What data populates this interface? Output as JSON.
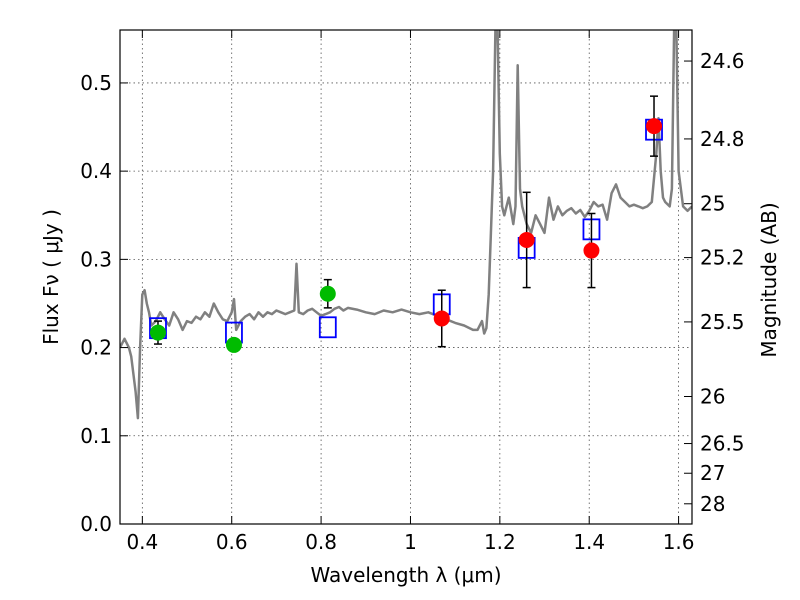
{
  "chart_data": {
    "type": "scatter",
    "xlabel": "Wavelength  λ (μm)",
    "ylabel": "Flux  Fν  ( μJy )",
    "ylabel_right": "Magnitude (AB)",
    "xlim": [
      0.35,
      1.63
    ],
    "ylim": [
      0.0,
      0.56
    ],
    "grid": true,
    "x_ticks": [
      {
        "value": 0.4,
        "label": "0.4"
      },
      {
        "value": 0.6,
        "label": "0.6"
      },
      {
        "value": 0.8,
        "label": "0.8"
      },
      {
        "value": 1.0,
        "label": "1"
      },
      {
        "value": 1.2,
        "label": "1.2"
      },
      {
        "value": 1.4,
        "label": "1.4"
      },
      {
        "value": 1.6,
        "label": "1.6"
      }
    ],
    "y_ticks": [
      {
        "value": 0.0,
        "label": "0.0"
      },
      {
        "value": 0.1,
        "label": "0.1"
      },
      {
        "value": 0.2,
        "label": "0.2"
      },
      {
        "value": 0.3,
        "label": "0.3"
      },
      {
        "value": 0.4,
        "label": "0.4"
      },
      {
        "value": 0.5,
        "label": "0.5"
      }
    ],
    "right_ticks": [
      {
        "label": "24.6",
        "mag": 24.6
      },
      {
        "label": "24.8",
        "mag": 24.8
      },
      {
        "label": "25",
        "mag": 25.0
      },
      {
        "label": "25.2",
        "mag": 25.2
      },
      {
        "label": "25.5",
        "mag": 25.5
      },
      {
        "label": "26",
        "mag": 26.0
      },
      {
        "label": "26.5",
        "mag": 26.5
      },
      {
        "label": "27",
        "mag": 27.0
      },
      {
        "label": "28",
        "mag": 28.0
      }
    ],
    "series": [
      {
        "style": "line",
        "color": "#808080",
        "x": [
          0.35,
          0.36,
          0.37,
          0.375,
          0.38,
          0.385,
          0.39,
          0.395,
          0.4,
          0.405,
          0.41,
          0.415,
          0.42,
          0.43,
          0.44,
          0.45,
          0.46,
          0.47,
          0.48,
          0.49,
          0.5,
          0.51,
          0.52,
          0.53,
          0.54,
          0.55,
          0.56,
          0.57,
          0.58,
          0.59,
          0.6,
          0.605,
          0.61,
          0.62,
          0.63,
          0.64,
          0.65,
          0.66,
          0.67,
          0.68,
          0.69,
          0.7,
          0.71,
          0.72,
          0.73,
          0.74,
          0.745,
          0.75,
          0.76,
          0.77,
          0.78,
          0.79,
          0.8,
          0.81,
          0.82,
          0.83,
          0.84,
          0.85,
          0.86,
          0.88,
          0.9,
          0.92,
          0.94,
          0.96,
          0.98,
          1.0,
          1.02,
          1.04,
          1.06,
          1.08,
          1.1,
          1.12,
          1.14,
          1.15,
          1.16,
          1.165,
          1.17,
          1.175,
          1.18,
          1.185,
          1.19,
          1.195,
          1.2,
          1.205,
          1.21,
          1.215,
          1.22,
          1.23,
          1.235,
          1.24,
          1.245,
          1.25,
          1.26,
          1.27,
          1.28,
          1.29,
          1.3,
          1.31,
          1.32,
          1.33,
          1.34,
          1.35,
          1.36,
          1.37,
          1.38,
          1.39,
          1.4,
          1.41,
          1.42,
          1.43,
          1.44,
          1.45,
          1.46,
          1.47,
          1.48,
          1.49,
          1.5,
          1.51,
          1.52,
          1.53,
          1.54,
          1.55,
          1.555,
          1.56,
          1.565,
          1.57,
          1.58,
          1.585,
          1.59,
          1.595,
          1.6,
          1.61,
          1.62,
          1.63
        ],
        "y": [
          0.2,
          0.21,
          0.2,
          0.19,
          0.17,
          0.15,
          0.12,
          0.2,
          0.26,
          0.265,
          0.25,
          0.24,
          0.225,
          0.23,
          0.24,
          0.232,
          0.225,
          0.24,
          0.232,
          0.22,
          0.23,
          0.228,
          0.235,
          0.232,
          0.24,
          0.235,
          0.25,
          0.24,
          0.232,
          0.23,
          0.24,
          0.255,
          0.22,
          0.23,
          0.235,
          0.238,
          0.232,
          0.24,
          0.235,
          0.24,
          0.238,
          0.242,
          0.24,
          0.238,
          0.24,
          0.242,
          0.295,
          0.24,
          0.238,
          0.242,
          0.244,
          0.24,
          0.236,
          0.238,
          0.24,
          0.244,
          0.246,
          0.242,
          0.245,
          0.243,
          0.24,
          0.238,
          0.242,
          0.24,
          0.243,
          0.24,
          0.238,
          0.24,
          0.236,
          0.232,
          0.228,
          0.225,
          0.22,
          0.22,
          0.23,
          0.216,
          0.222,
          0.26,
          0.33,
          0.4,
          0.56,
          0.56,
          0.42,
          0.36,
          0.35,
          0.36,
          0.37,
          0.34,
          0.36,
          0.52,
          0.38,
          0.36,
          0.34,
          0.33,
          0.35,
          0.34,
          0.33,
          0.37,
          0.345,
          0.36,
          0.35,
          0.355,
          0.358,
          0.352,
          0.356,
          0.348,
          0.355,
          0.365,
          0.36,
          0.362,
          0.345,
          0.375,
          0.385,
          0.37,
          0.365,
          0.36,
          0.362,
          0.36,
          0.358,
          0.36,
          0.365,
          0.42,
          0.46,
          0.4,
          0.37,
          0.365,
          0.36,
          0.38,
          0.56,
          0.56,
          0.4,
          0.36,
          0.355,
          0.36
        ]
      },
      {
        "style": "open-square",
        "color": "#0000ff",
        "x": [
          0.435,
          0.605,
          0.815,
          1.07,
          1.26,
          1.405,
          1.545
        ],
        "y": [
          0.222,
          0.217,
          0.223,
          0.249,
          0.313,
          0.334,
          0.447
        ]
      },
      {
        "style": "circle",
        "color": "#00bb00",
        "x": [
          0.435,
          0.605,
          0.815
        ],
        "y": [
          0.217,
          0.203,
          0.261
        ],
        "err": [
          0.013,
          0.007,
          0.016
        ]
      },
      {
        "style": "circle",
        "color": "#ff0000",
        "x": [
          1.07,
          1.26,
          1.405,
          1.545
        ],
        "y": [
          0.233,
          0.322,
          0.31,
          0.451
        ],
        "err": [
          0.032,
          0.054,
          0.042,
          0.034
        ]
      }
    ]
  }
}
